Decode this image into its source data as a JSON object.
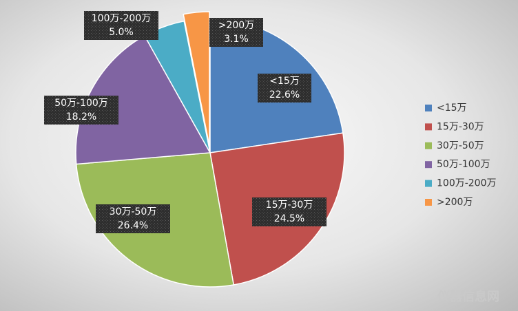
{
  "chart_data": {
    "type": "pie",
    "categories": [
      "<15万",
      "15万-30万",
      "30万-50万",
      "50万-100万",
      "100万-200万",
      ">200万"
    ],
    "values": [
      22.6,
      24.5,
      26.4,
      18.2,
      5.0,
      3.1
    ],
    "value_labels": [
      "22.6%",
      "24.5%",
      "26.4%",
      "18.2%",
      "5.0%",
      "3.1%"
    ],
    "colors": [
      "#4f81bd",
      "#c0504d",
      "#9bbb59",
      "#8064a2",
      "#4bacc6",
      "#f79646"
    ],
    "legend": "right"
  },
  "watermark": "仪器信息网"
}
